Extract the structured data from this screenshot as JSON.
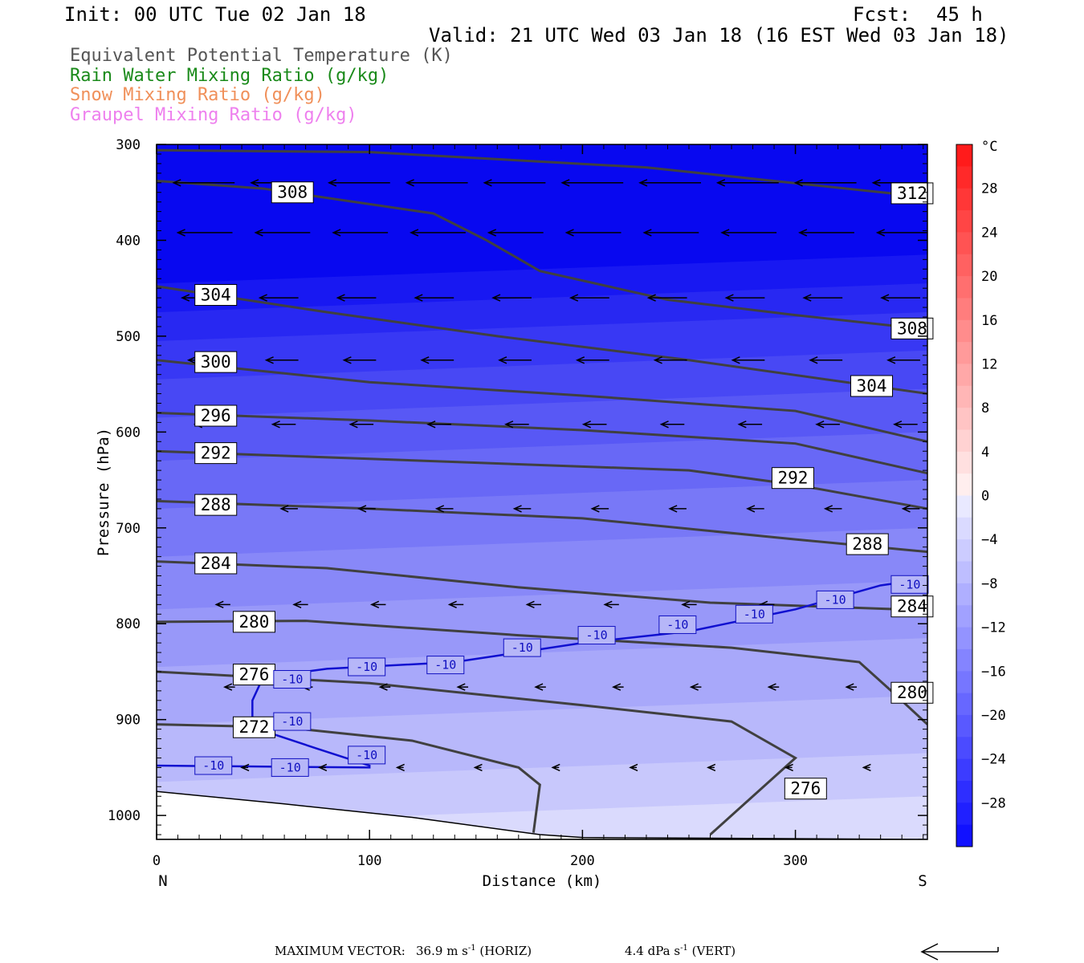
{
  "header": {
    "init": "Init: 00 UTC Tue 02 Jan 18",
    "fcst_label": "Fcst:",
    "fcst_value": "45 h",
    "valid": "Valid: 21 UTC Wed 03 Jan 18 (16 EST Wed 03 Jan 18)"
  },
  "legend": [
    {
      "label": "Equivalent Potential Temperature (K)",
      "color": "#555555"
    },
    {
      "label": "Rain Water Mixing Ratio (g/kg)",
      "color": "#1a8a1a"
    },
    {
      "label": "Snow Mixing Ratio (g/kg)",
      "color": "#f0905a"
    },
    {
      "label": "Graupel Mixing Ratio (g/kg)",
      "color": "#ee80ee"
    }
  ],
  "footer": {
    "max_label": "MAXIMUM VECTOR:",
    "horiz_value": "36.9",
    "horiz_unit": "m s",
    "horiz_exp": "-1",
    "horiz_tag": "(HORIZ)",
    "vert_value": "4.4",
    "vert_unit": "dPa s",
    "vert_exp": "-1",
    "vert_tag": "(VERT)"
  },
  "chart_data": {
    "type": "cross-section",
    "xlabel": "Distance (km)",
    "ylabel": "Pressure (hPa)",
    "x_range": [
      0,
      362
    ],
    "y_range": [
      300,
      1025
    ],
    "y_scale": "linear",
    "x_ticks": [
      0,
      100,
      200,
      300
    ],
    "y_ticks": [
      300,
      400,
      500,
      600,
      700,
      800,
      900,
      1000
    ],
    "left_end_label": "N",
    "right_end_label": "S",
    "colorbar": {
      "unit": "°C",
      "ticks": [
        28,
        24,
        20,
        16,
        12,
        8,
        4,
        0,
        -4,
        -8,
        -12,
        -16,
        -20,
        -24,
        -28
      ],
      "range": [
        -32,
        32
      ],
      "step": 2
    },
    "shading_bands": [
      {
        "p": 300,
        "c": "#0808f0"
      },
      {
        "p": 430,
        "c": "#1818f2"
      },
      {
        "p": 460,
        "c": "#2828f2"
      },
      {
        "p": 490,
        "c": "#3838f4"
      },
      {
        "p": 530,
        "c": "#4848f4"
      },
      {
        "p": 570,
        "c": "#5858f5"
      },
      {
        "p": 615,
        "c": "#6868f6"
      },
      {
        "p": 665,
        "c": "#7878f7"
      },
      {
        "p": 715,
        "c": "#8888f8"
      },
      {
        "p": 770,
        "c": "#9898f9"
      },
      {
        "p": 830,
        "c": "#a8a8fa"
      },
      {
        "p": 890,
        "c": "#b8b8fb"
      },
      {
        "p": 950,
        "c": "#c8c8fc"
      },
      {
        "p": 995,
        "c": "#dadafd"
      }
    ],
    "theta_e_contours": [
      {
        "value": 312,
        "points": [
          [
            0,
            306
          ],
          [
            100,
            308
          ],
          [
            230,
            324
          ],
          [
            362,
            355
          ]
        ],
        "label_at": [
          345,
          351
        ]
      },
      {
        "value": 308,
        "points": [
          [
            0,
            338
          ],
          [
            50,
            346
          ],
          [
            130,
            372
          ],
          [
            155,
            400
          ],
          [
            180,
            432
          ],
          [
            240,
            462
          ],
          [
            300,
            478
          ],
          [
            362,
            493
          ]
        ],
        "label_at": [
          54,
          350
        ]
      },
      {
        "value": 308,
        "points": [],
        "label_at": [
          345,
          492
        ]
      },
      {
        "value": 304,
        "points": [
          [
            0,
            448
          ],
          [
            80,
            475
          ],
          [
            160,
            500
          ],
          [
            250,
            525
          ],
          [
            362,
            560
          ]
        ],
        "label_at": [
          18,
          457
        ]
      },
      {
        "value": 304,
        "points": [],
        "label_at": [
          326,
          552
        ]
      },
      {
        "value": 300,
        "points": [
          [
            0,
            525
          ],
          [
            100,
            548
          ],
          [
            200,
            562
          ],
          [
            300,
            578
          ],
          [
            362,
            610
          ]
        ],
        "label_at": [
          18,
          527
        ]
      },
      {
        "value": 296,
        "points": [
          [
            0,
            580
          ],
          [
            100,
            588
          ],
          [
            200,
            598
          ],
          [
            300,
            612
          ],
          [
            362,
            643
          ]
        ],
        "label_at": [
          18,
          583
        ]
      },
      {
        "value": 292,
        "points": [
          [
            0,
            620
          ],
          [
            100,
            628
          ],
          [
            250,
            640
          ],
          [
            300,
            655
          ],
          [
            362,
            680
          ]
        ],
        "label_at": [
          18,
          622
        ]
      },
      {
        "value": 292,
        "points": [],
        "label_at": [
          289,
          648
        ]
      },
      {
        "value": 288,
        "points": [
          [
            0,
            672
          ],
          [
            100,
            680
          ],
          [
            200,
            690
          ],
          [
            300,
            712
          ],
          [
            362,
            725
          ]
        ],
        "label_at": [
          18,
          676
        ]
      },
      {
        "value": 288,
        "points": [],
        "label_at": [
          324,
          717
        ]
      },
      {
        "value": 284,
        "points": [
          [
            0,
            735
          ],
          [
            80,
            742
          ],
          [
            170,
            762
          ],
          [
            260,
            778
          ],
          [
            362,
            786
          ]
        ],
        "label_at": [
          18,
          737
        ]
      },
      {
        "value": 284,
        "points": [],
        "label_at": [
          345,
          782
        ]
      },
      {
        "value": 280,
        "points": [
          [
            0,
            798
          ],
          [
            70,
            797
          ],
          [
            170,
            812
          ],
          [
            270,
            825
          ],
          [
            330,
            840
          ],
          [
            345,
            870
          ],
          [
            362,
            905
          ]
        ],
        "label_at": [
          36,
          798
        ]
      },
      {
        "value": 280,
        "points": [],
        "label_at": [
          345,
          872
        ]
      },
      {
        "value": 276,
        "points": [
          [
            0,
            850
          ],
          [
            100,
            862
          ],
          [
            200,
            885
          ],
          [
            270,
            902
          ],
          [
            300,
            940
          ],
          [
            260,
            1020
          ]
        ],
        "label_at": [
          36,
          853
        ]
      },
      {
        "value": 276,
        "points": [],
        "label_at": [
          295,
          972
        ]
      },
      {
        "value": 272,
        "points": [
          [
            0,
            905
          ],
          [
            60,
            908
          ],
          [
            120,
            922
          ],
          [
            170,
            950
          ],
          [
            180,
            968
          ],
          [
            177,
            1018
          ]
        ],
        "label_at": [
          36,
          908
        ]
      }
    ],
    "isotherm_m10": {
      "value": -10,
      "points": [
        [
          0,
          948
        ],
        [
          100,
          950
        ],
        [
          100,
          948
        ],
        [
          75,
          930
        ],
        [
          45,
          908
        ],
        [
          45,
          880
        ],
        [
          50,
          856
        ],
        [
          80,
          847
        ],
        [
          140,
          840
        ],
        [
          200,
          820
        ],
        [
          250,
          808
        ],
        [
          300,
          785
        ],
        [
          340,
          760
        ],
        [
          362,
          753
        ]
      ],
      "labels": [
        [
          18,
          948
        ],
        [
          54,
          950
        ],
        [
          90,
          937
        ],
        [
          55,
          902
        ],
        [
          55,
          858
        ],
        [
          90,
          845
        ],
        [
          127,
          843
        ],
        [
          163,
          825
        ],
        [
          198,
          812
        ],
        [
          236,
          801
        ],
        [
          272,
          790
        ],
        [
          310,
          775
        ],
        [
          345,
          759
        ]
      ]
    },
    "terrain": [
      [
        0,
        975
      ],
      [
        60,
        988
      ],
      [
        120,
        1002
      ],
      [
        180,
        1020
      ],
      [
        200,
        1023
      ],
      [
        362,
        1025
      ]
    ],
    "wind_rows": [
      {
        "p": 340,
        "len": 0.95,
        "start": 8
      },
      {
        "p": 392,
        "len": 0.85,
        "start": 10
      },
      {
        "p": 460,
        "len": 0.6,
        "start": 12
      },
      {
        "p": 525,
        "len": 0.5,
        "start": 15
      },
      {
        "p": 592,
        "len": 0.36,
        "start": 18
      },
      {
        "p": 680,
        "len": 0.26,
        "start": 22
      },
      {
        "p": 780,
        "len": 0.22,
        "start": 28
      },
      {
        "p": 866,
        "len": 0.16,
        "start": 32
      },
      {
        "p": 950,
        "len": 0.1,
        "start": 40
      }
    ],
    "wind_spacing_km": 36.5
  }
}
